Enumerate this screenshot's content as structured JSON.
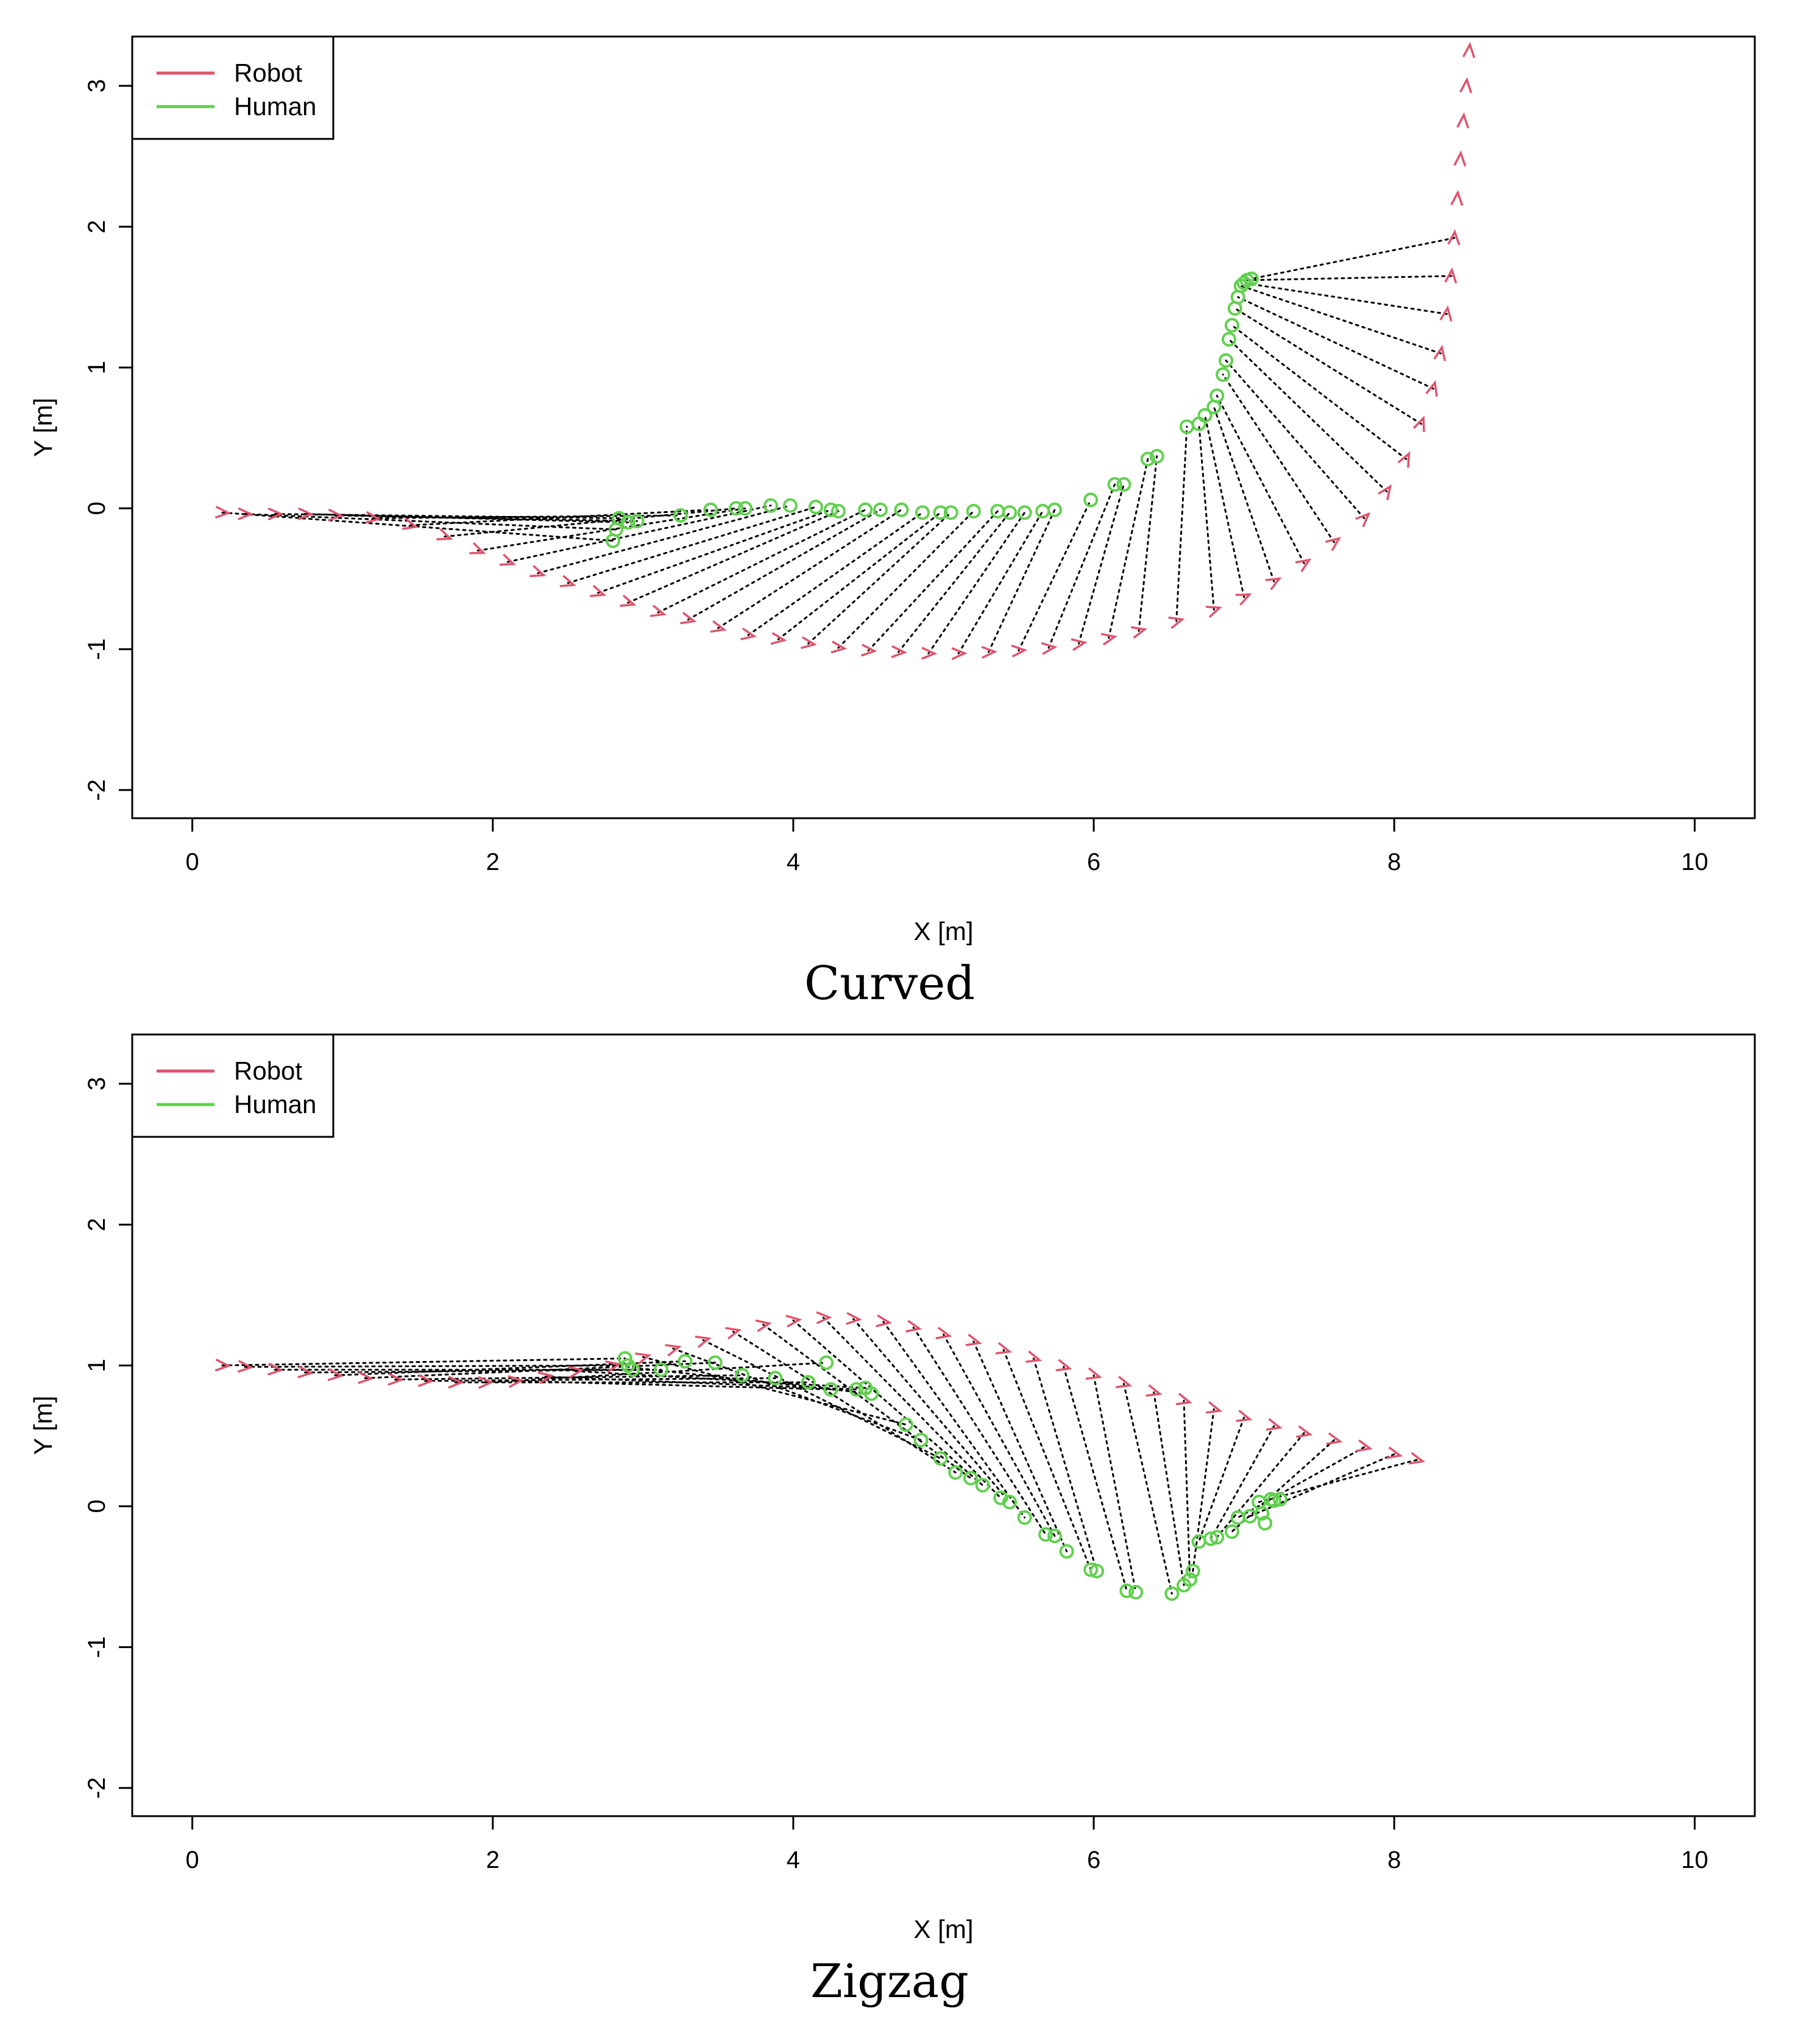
{
  "colors": {
    "robot": "#df536b",
    "human": "#61d04f",
    "link": "#000000"
  },
  "chart_data": [
    {
      "type": "scatter",
      "title": "Curved",
      "xlabel": "X [m]",
      "ylabel": "Y [m]",
      "xlim": [
        -0.4,
        10.4
      ],
      "ylim": [
        -2.2,
        3.35
      ],
      "xticks": [
        0,
        2,
        4,
        6,
        8,
        10
      ],
      "yticks": [
        -2,
        -1,
        0,
        1,
        2,
        3
      ],
      "legend": {
        "position": "top-left",
        "entries": [
          "Robot",
          "Human"
        ]
      },
      "series": [
        {
          "name": "Robot",
          "marker": ">",
          "points": [
            [
              0.2,
              -0.03
            ],
            [
              0.35,
              -0.04
            ],
            [
              0.55,
              -0.04
            ],
            [
              0.75,
              -0.04
            ],
            [
              0.95,
              -0.05
            ],
            [
              1.2,
              -0.07
            ],
            [
              1.45,
              -0.12
            ],
            [
              1.68,
              -0.2
            ],
            [
              1.9,
              -0.3
            ],
            [
              2.1,
              -0.38
            ],
            [
              2.3,
              -0.46
            ],
            [
              2.5,
              -0.53
            ],
            [
              2.7,
              -0.6
            ],
            [
              2.9,
              -0.67
            ],
            [
              3.1,
              -0.74
            ],
            [
              3.3,
              -0.79
            ],
            [
              3.5,
              -0.85
            ],
            [
              3.7,
              -0.9
            ],
            [
              3.9,
              -0.93
            ],
            [
              4.1,
              -0.96
            ],
            [
              4.3,
              -0.99
            ],
            [
              4.5,
              -1.01
            ],
            [
              4.7,
              -1.02
            ],
            [
              4.9,
              -1.03
            ],
            [
              5.1,
              -1.03
            ],
            [
              5.3,
              -1.02
            ],
            [
              5.5,
              -1.01
            ],
            [
              5.7,
              -0.99
            ],
            [
              5.9,
              -0.96
            ],
            [
              6.1,
              -0.92
            ],
            [
              6.3,
              -0.87
            ],
            [
              6.55,
              -0.8
            ],
            [
              6.8,
              -0.72
            ],
            [
              7.0,
              -0.63
            ],
            [
              7.2,
              -0.52
            ],
            [
              7.4,
              -0.39
            ],
            [
              7.6,
              -0.24
            ],
            [
              7.8,
              -0.07
            ],
            [
              7.95,
              0.12
            ],
            [
              8.08,
              0.35
            ],
            [
              8.18,
              0.6
            ],
            [
              8.26,
              0.85
            ],
            [
              8.31,
              1.1
            ],
            [
              8.35,
              1.38
            ],
            [
              8.38,
              1.65
            ],
            [
              8.4,
              1.92
            ],
            [
              8.42,
              2.2
            ],
            [
              8.44,
              2.48
            ],
            [
              8.46,
              2.75
            ],
            [
              8.48,
              3.0
            ],
            [
              8.5,
              3.25
            ]
          ]
        },
        {
          "name": "Human",
          "marker": "o",
          "points": [
            [
              2.8,
              -0.23
            ],
            [
              2.82,
              -0.15
            ],
            [
              2.84,
              -0.07
            ],
            [
              2.9,
              -0.1
            ],
            [
              2.96,
              -0.09
            ],
            [
              3.25,
              -0.05
            ],
            [
              3.45,
              -0.01
            ],
            [
              3.62,
              0.0
            ],
            [
              3.68,
              0.0
            ],
            [
              3.85,
              0.02
            ],
            [
              3.98,
              0.02
            ],
            [
              4.15,
              0.01
            ],
            [
              4.25,
              -0.01
            ],
            [
              4.3,
              -0.02
            ],
            [
              4.48,
              -0.01
            ],
            [
              4.58,
              -0.01
            ],
            [
              4.72,
              -0.01
            ],
            [
              4.86,
              -0.03
            ],
            [
              4.98,
              -0.03
            ],
            [
              5.05,
              -0.03
            ],
            [
              5.2,
              -0.02
            ],
            [
              5.36,
              -0.02
            ],
            [
              5.44,
              -0.03
            ],
            [
              5.54,
              -0.03
            ],
            [
              5.66,
              -0.02
            ],
            [
              5.74,
              -0.01
            ],
            [
              5.98,
              0.06
            ],
            [
              6.14,
              0.17
            ],
            [
              6.2,
              0.17
            ],
            [
              6.36,
              0.35
            ],
            [
              6.42,
              0.37
            ],
            [
              6.62,
              0.58
            ],
            [
              6.7,
              0.6
            ],
            [
              6.74,
              0.66
            ],
            [
              6.8,
              0.72
            ],
            [
              6.82,
              0.8
            ],
            [
              6.86,
              0.95
            ],
            [
              6.88,
              1.05
            ],
            [
              6.9,
              1.2
            ],
            [
              6.92,
              1.3
            ],
            [
              6.94,
              1.42
            ],
            [
              6.96,
              1.5
            ],
            [
              6.98,
              1.58
            ],
            [
              7.0,
              1.6
            ],
            [
              7.02,
              1.62
            ],
            [
              7.05,
              1.63
            ]
          ]
        }
      ]
    },
    {
      "type": "scatter",
      "title": "Zigzag",
      "xlabel": "X [m]",
      "ylabel": "Y [m]",
      "xlim": [
        -0.4,
        10.4
      ],
      "ylim": [
        -2.2,
        3.35
      ],
      "xticks": [
        0,
        2,
        4,
        6,
        8,
        10
      ],
      "yticks": [
        -2,
        -1,
        0,
        1,
        2,
        3
      ],
      "legend": {
        "position": "top-left",
        "entries": [
          "Robot",
          "Human"
        ]
      },
      "series": [
        {
          "name": "Robot",
          "marker": ">",
          "points": [
            [
              0.2,
              1.0
            ],
            [
              0.35,
              0.99
            ],
            [
              0.55,
              0.97
            ],
            [
              0.75,
              0.95
            ],
            [
              0.95,
              0.93
            ],
            [
              1.15,
              0.91
            ],
            [
              1.35,
              0.9
            ],
            [
              1.55,
              0.89
            ],
            [
              1.75,
              0.88
            ],
            [
              1.95,
              0.88
            ],
            [
              2.15,
              0.89
            ],
            [
              2.35,
              0.92
            ],
            [
              2.55,
              0.96
            ],
            [
              2.8,
              1.0
            ],
            [
              3.0,
              1.06
            ],
            [
              3.2,
              1.12
            ],
            [
              3.4,
              1.18
            ],
            [
              3.6,
              1.24
            ],
            [
              3.8,
              1.29
            ],
            [
              4.0,
              1.32
            ],
            [
              4.2,
              1.34
            ],
            [
              4.4,
              1.33
            ],
            [
              4.6,
              1.31
            ],
            [
              4.8,
              1.27
            ],
            [
              5.0,
              1.22
            ],
            [
              5.2,
              1.17
            ],
            [
              5.4,
              1.11
            ],
            [
              5.6,
              1.05
            ],
            [
              5.8,
              0.99
            ],
            [
              6.0,
              0.93
            ],
            [
              6.2,
              0.87
            ],
            [
              6.4,
              0.81
            ],
            [
              6.6,
              0.75
            ],
            [
              6.8,
              0.69
            ],
            [
              7.0,
              0.63
            ],
            [
              7.2,
              0.57
            ],
            [
              7.4,
              0.52
            ],
            [
              7.6,
              0.47
            ],
            [
              7.8,
              0.42
            ],
            [
              8.0,
              0.37
            ],
            [
              8.15,
              0.33
            ]
          ]
        },
        {
          "name": "Human",
          "marker": "o",
          "points": [
            [
              2.88,
              1.05
            ],
            [
              2.9,
              1.0
            ],
            [
              2.93,
              0.97
            ],
            [
              3.12,
              0.97
            ],
            [
              3.28,
              1.03
            ],
            [
              3.48,
              1.02
            ],
            [
              3.66,
              0.93
            ],
            [
              3.88,
              0.91
            ],
            [
              4.1,
              0.88
            ],
            [
              4.22,
              1.02
            ],
            [
              4.25,
              0.83
            ],
            [
              4.42,
              0.83
            ],
            [
              4.48,
              0.84
            ],
            [
              4.52,
              0.8
            ],
            [
              4.75,
              0.58
            ],
            [
              4.85,
              0.47
            ],
            [
              4.98,
              0.34
            ],
            [
              5.08,
              0.24
            ],
            [
              5.18,
              0.2
            ],
            [
              5.26,
              0.15
            ],
            [
              5.38,
              0.06
            ],
            [
              5.44,
              0.03
            ],
            [
              5.54,
              -0.08
            ],
            [
              5.68,
              -0.2
            ],
            [
              5.74,
              -0.21
            ],
            [
              5.82,
              -0.32
            ],
            [
              5.98,
              -0.45
            ],
            [
              6.02,
              -0.46
            ],
            [
              6.22,
              -0.6
            ],
            [
              6.28,
              -0.61
            ],
            [
              6.52,
              -0.62
            ],
            [
              6.6,
              -0.56
            ],
            [
              6.64,
              -0.52
            ],
            [
              6.66,
              -0.46
            ],
            [
              6.7,
              -0.25
            ],
            [
              6.78,
              -0.23
            ],
            [
              6.82,
              -0.22
            ],
            [
              6.92,
              -0.18
            ],
            [
              6.96,
              -0.08
            ],
            [
              7.04,
              -0.07
            ],
            [
              7.1,
              0.03
            ],
            [
              7.12,
              -0.05
            ],
            [
              7.14,
              -0.12
            ],
            [
              7.18,
              0.05
            ],
            [
              7.2,
              0.04
            ],
            [
              7.24,
              0.05
            ]
          ]
        }
      ]
    }
  ]
}
